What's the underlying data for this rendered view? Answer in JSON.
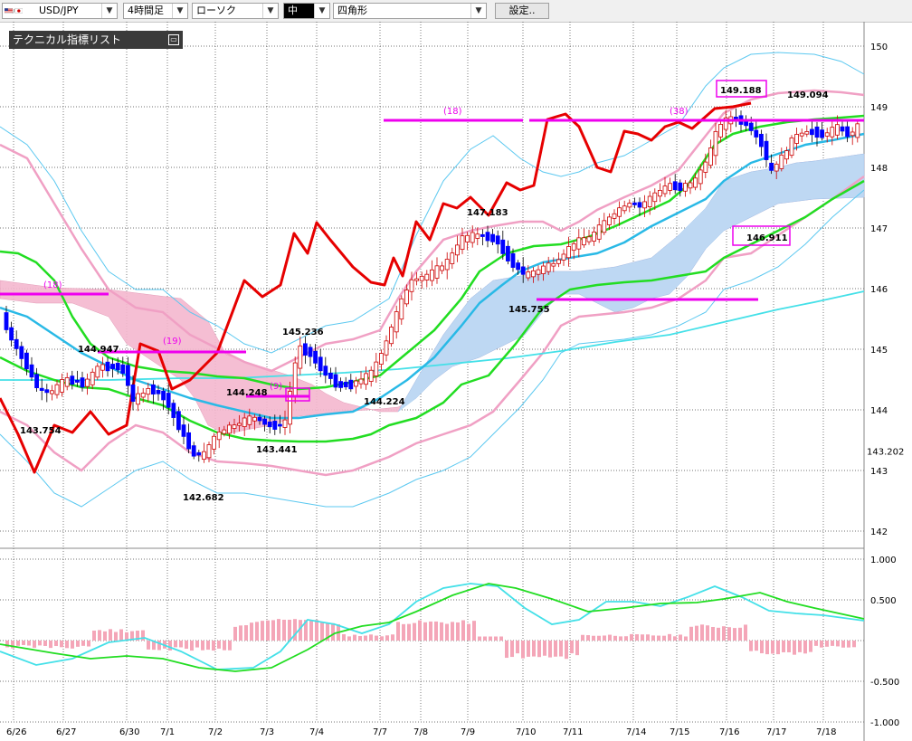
{
  "toolbar": {
    "symbol": "USD/JPY",
    "timeframe": "4時間足",
    "chart_type": "ローソク",
    "draw_weight": "中",
    "shape": "四角形",
    "settings_label": "設定..",
    "dropdown_icon": "chevron-down-icon"
  },
  "indicator_panel": {
    "title": "テクニカル指標リスト",
    "toggle_icon": "collapse-icon"
  },
  "price_axis": {
    "ticks": [
      "150",
      "149",
      "148",
      "147",
      "146",
      "145",
      "144",
      "143",
      "142"
    ],
    "current_label": "143.202"
  },
  "macd_axis": {
    "ticks": [
      "1.000",
      "0.500",
      "-0.500",
      "-1.000"
    ]
  },
  "date_axis": [
    "6/26",
    "6/27",
    "6/30",
    "7/1",
    "7/2",
    "7/3",
    "7/4",
    "7/7",
    "7/8",
    "7/9",
    "7/10",
    "7/11",
    "7/14",
    "7/15",
    "7/16",
    "7/17",
    "7/18"
  ],
  "annotations": {
    "price_labels": [
      "144.947",
      "143.754",
      "142.682",
      "144.248",
      "145.236",
      "143.441",
      "144.224",
      "147.183",
      "145.755",
      "149.188",
      "149.094",
      "146.911"
    ],
    "count_labels": [
      "(18)",
      "(19)",
      "(9)",
      "(18)",
      "(38)"
    ]
  },
  "colors": {
    "bull": "#cc0000",
    "bear": "#0000ff",
    "kumo": "#f5b8cf",
    "kumo_blue": "#bcdaf5",
    "ma_cyan": "#29b9e6",
    "ma_green": "#22dd22",
    "band_pink": "#f0a0c4",
    "band_blue": "#5bc8f0",
    "red_line": "#e60000",
    "magenta": "#ee00ee"
  },
  "chart_data": {
    "type": "candlestick",
    "x": [
      "6/26",
      "6/27",
      "6/30",
      "7/1",
      "7/2",
      "7/3",
      "7/4",
      "7/7",
      "7/8",
      "7/9",
      "7/10",
      "7/11",
      "7/14",
      "7/15",
      "7/16",
      "7/17",
      "7/18"
    ],
    "ylim": [
      141.8,
      150.2
    ],
    "close": [
      144.8,
      143.9,
      144.4,
      144.1,
      143.0,
      143.6,
      145.1,
      144.4,
      145.6,
      146.8,
      145.9,
      146.6,
      147.4,
      147.9,
      148.7,
      147.9,
      148.6
    ],
    "macd_ylim": [
      -1.0,
      1.0
    ]
  }
}
